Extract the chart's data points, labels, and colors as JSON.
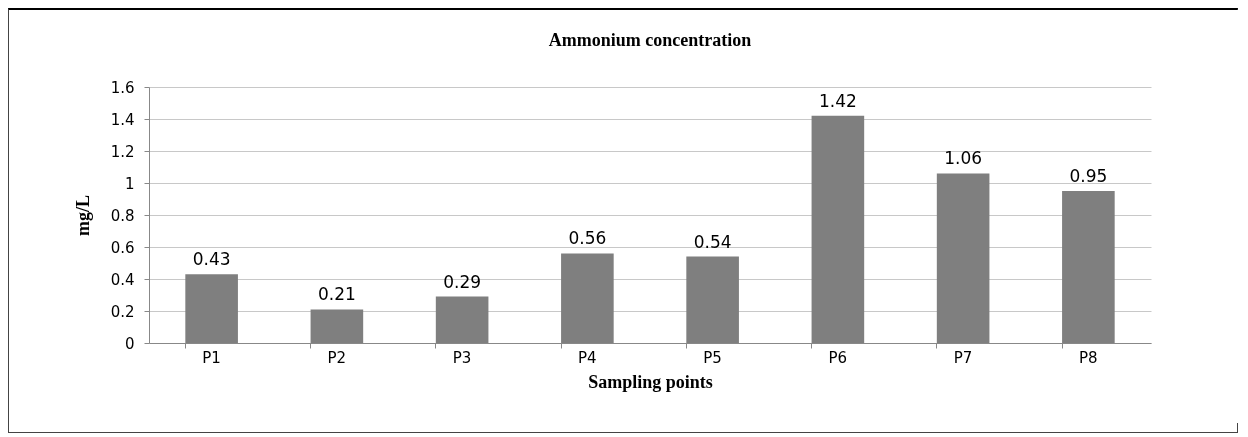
{
  "chart_data": {
    "type": "bar",
    "title": "Ammonium concentration",
    "xlabel": "Sampling points",
    "ylabel": "mg/L",
    "categories": [
      "P1",
      "P2",
      "P3",
      "P4",
      "P5",
      "P6",
      "P7",
      "P8"
    ],
    "values": [
      0.43,
      0.21,
      0.29,
      0.56,
      0.54,
      1.42,
      1.06,
      0.95
    ],
    "color": "#7f7f7f",
    "ylim": [
      0,
      1.6
    ],
    "yticks": [
      0,
      0.2,
      0.4,
      0.6,
      0.8,
      1,
      1.2,
      1.4,
      1.6
    ],
    "grid": "y",
    "data_labels": true
  }
}
